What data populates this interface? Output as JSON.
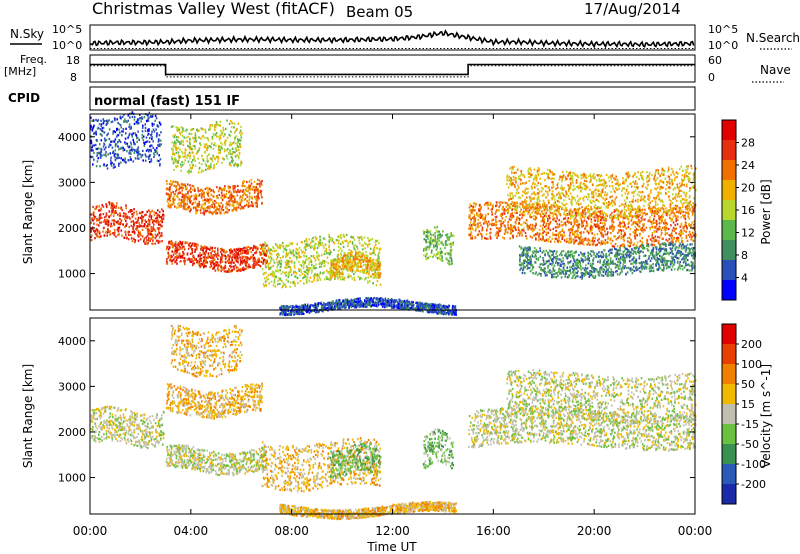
{
  "header": {
    "station": "Christmas Valley West (fitACF)",
    "beam": "Beam 05",
    "date": "17/Aug/2014"
  },
  "panel_labels": {
    "nsky": "N.Sky",
    "nsearch": "N.Search",
    "freq_line1": "Freq.",
    "freq_line2": "[MHz]",
    "nave": "Nave",
    "cpid": "CPID",
    "cpid_text": "normal (fast) 151 IF"
  },
  "noise_axis": {
    "left_ticks": [
      "10^5",
      "10^0"
    ],
    "right_ticks": [
      "10^5",
      "10^0"
    ]
  },
  "freq_axis": {
    "left_ticks": [
      "18",
      "8"
    ],
    "right_ticks": [
      "60",
      "0"
    ]
  },
  "colors": {
    "power": [
      "#0000ff",
      "#2b4fb8",
      "#3f8f5f",
      "#5cb84a",
      "#b8d830",
      "#f0b000",
      "#f07000",
      "#e83010",
      "#e00000"
    ],
    "velocity": [
      "#1a2aa8",
      "#2a5ab8",
      "#3a9050",
      "#6ac040",
      "#c0c0b0",
      "#f0b800",
      "#f08000",
      "#e84000",
      "#e00000"
    ]
  },
  "chart_data": [
    {
      "type": "line",
      "name": "noise",
      "xlabel": "",
      "series": [
        {
          "name": "N.Sky",
          "x": [
            0,
            1,
            2,
            3,
            4,
            5,
            6,
            7,
            8,
            9,
            10,
            11,
            12,
            13,
            14,
            15,
            16,
            17,
            18,
            19,
            20,
            21,
            22,
            23,
            24
          ],
          "y": [
            1.3,
            1.5,
            1.5,
            1.6,
            1.9,
            2.0,
            2.1,
            2.1,
            2.0,
            2.0,
            2.0,
            2.1,
            2.2,
            2.6,
            3.4,
            2.5,
            1.6,
            1.6,
            1.4,
            1.3,
            1.2,
            1.2,
            1.1,
            1.2,
            1.3
          ]
        },
        {
          "name": "N.Search",
          "x": [
            0,
            24
          ],
          "y": [
            0.3,
            0.3
          ]
        }
      ],
      "ylim": [
        0,
        5
      ]
    },
    {
      "type": "line",
      "name": "frequency",
      "series": [
        {
          "name": "Freq.",
          "x": [
            0,
            3,
            3,
            15,
            15,
            24
          ],
          "y": [
            14.5,
            14.5,
            10.8,
            10.8,
            14.5,
            14.5
          ]
        },
        {
          "name": "Nave",
          "x": [
            0,
            3,
            3,
            15,
            15,
            24
          ],
          "y": [
            14,
            14,
            9.9,
            9.9,
            14,
            14
          ]
        }
      ],
      "ylim": [
        8,
        18
      ]
    },
    {
      "type": "heatmap",
      "name": "power",
      "ylabel": "Slant Range [km]",
      "xlabel": "",
      "xlim": [
        0,
        24
      ],
      "ylim": [
        200,
        4500
      ],
      "yticks": [
        1000,
        2000,
        3000,
        4000
      ],
      "colorbar": {
        "label": "Power [dB]",
        "ticks": [
          28,
          24,
          20,
          16,
          12,
          8,
          4
        ]
      },
      "scatter_regions": [
        {
          "x0": 0,
          "x1": 2.9,
          "r0": 1750,
          "r1": 2500,
          "level": 7
        },
        {
          "x0": 3.0,
          "x1": 7.0,
          "r0": 1150,
          "r1": 1650,
          "level": 7
        },
        {
          "x0": 3.0,
          "x1": 6.8,
          "r0": 2400,
          "r1": 3000,
          "level": 6
        },
        {
          "x0": 3.2,
          "x1": 6.0,
          "r0": 3300,
          "r1": 4300,
          "level": 4
        },
        {
          "x0": 6.8,
          "x1": 11.5,
          "r0": 800,
          "r1": 1800,
          "level": 4
        },
        {
          "x0": 9.5,
          "x1": 11.5,
          "r0": 1000,
          "r1": 1400,
          "level": 5
        },
        {
          "x0": 13.2,
          "x1": 14.4,
          "r0": 1300,
          "r1": 2000,
          "level": 3
        },
        {
          "x0": 15.0,
          "x1": 24.0,
          "r0": 1700,
          "r1": 2500,
          "level": 6
        },
        {
          "x0": 16.5,
          "x1": 24.0,
          "r0": 2300,
          "r1": 3300,
          "level": 5
        },
        {
          "x0": 17.0,
          "x1": 24.0,
          "r0": 1000,
          "r1": 1600,
          "level": 2
        },
        {
          "x0": 0,
          "x1": 2.8,
          "r0": 3400,
          "r1": 4500,
          "level": 1
        },
        {
          "x0": 7.5,
          "x1": 14.5,
          "r0": 200,
          "r1": 400,
          "level": 1
        }
      ]
    },
    {
      "type": "heatmap",
      "name": "velocity",
      "ylabel": "Slant Range [km]",
      "xlabel": "Time UT",
      "xlim": [
        0,
        24
      ],
      "ylim": [
        200,
        4500
      ],
      "yticks": [
        1000,
        2000,
        3000,
        4000
      ],
      "xticks": [
        "00:00",
        "04:00",
        "08:00",
        "12:00",
        "16:00",
        "20:00",
        "00:00"
      ],
      "colorbar": {
        "label": "Velocity [m s^-1]",
        "ticks": [
          200,
          100,
          50,
          15,
          -15,
          -50,
          -100,
          -200
        ]
      },
      "scatter_regions": [
        {
          "x0": 0,
          "x1": 2.9,
          "r0": 1750,
          "r1": 2500,
          "level": 4
        },
        {
          "x0": 3.0,
          "x1": 7.0,
          "r0": 1150,
          "r1": 1650,
          "level": 4
        },
        {
          "x0": 3.0,
          "x1": 6.8,
          "r0": 2400,
          "r1": 3000,
          "level": 5
        },
        {
          "x0": 6.8,
          "x1": 11.5,
          "r0": 800,
          "r1": 1800,
          "level": 5
        },
        {
          "x0": 9.5,
          "x1": 11.5,
          "r0": 1100,
          "r1": 1700,
          "level": 3
        },
        {
          "x0": 13.2,
          "x1": 14.4,
          "r0": 1300,
          "r1": 2000,
          "level": 3
        },
        {
          "x0": 15.0,
          "x1": 24.0,
          "r0": 1700,
          "r1": 2500,
          "level": 4
        },
        {
          "x0": 16.5,
          "x1": 24.0,
          "r0": 2300,
          "r1": 3300,
          "level": 4
        },
        {
          "x0": 3.2,
          "x1": 6.0,
          "r0": 3300,
          "r1": 4300,
          "level": 5
        },
        {
          "x0": 7.5,
          "x1": 14.5,
          "r0": 200,
          "r1": 400,
          "level": 5
        }
      ]
    }
  ]
}
